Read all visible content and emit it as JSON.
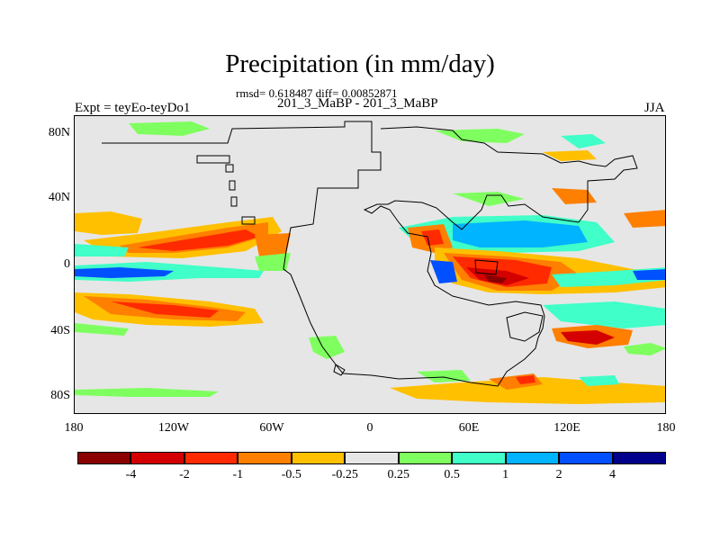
{
  "title": "Precipitation (in mm/day)",
  "stats": "rmsd= 0.618487 diff= 0.00852871",
  "center_label": "201_3_MaBP - 201_3_MaBP",
  "left_label": "Expt = teyEo-teyDo1",
  "season": "JJA",
  "map": {
    "lon_range": [
      -180,
      180
    ],
    "lat_range": [
      -90,
      90
    ],
    "background_color": "#e6e6e6",
    "y_tick_labels": [
      "80N",
      "40N",
      "0",
      "40S",
      "80S"
    ],
    "x_tick_labels": [
      "180",
      "120W",
      "60W",
      "0",
      "60E",
      "120E",
      "180"
    ]
  },
  "colorbar": {
    "labels": [
      "-4",
      "-2",
      "-1",
      "-0.5",
      "-0.25",
      "0.25",
      "0.5",
      "1",
      "2",
      "4"
    ],
    "colors": [
      "#8b0000",
      "#d40000",
      "#ff2a00",
      "#ff7f00",
      "#ffc000",
      "#e6e6e6",
      "#7fff5f",
      "#40ffc8",
      "#00b4ff",
      "#0050ff",
      "#00008b"
    ]
  }
}
